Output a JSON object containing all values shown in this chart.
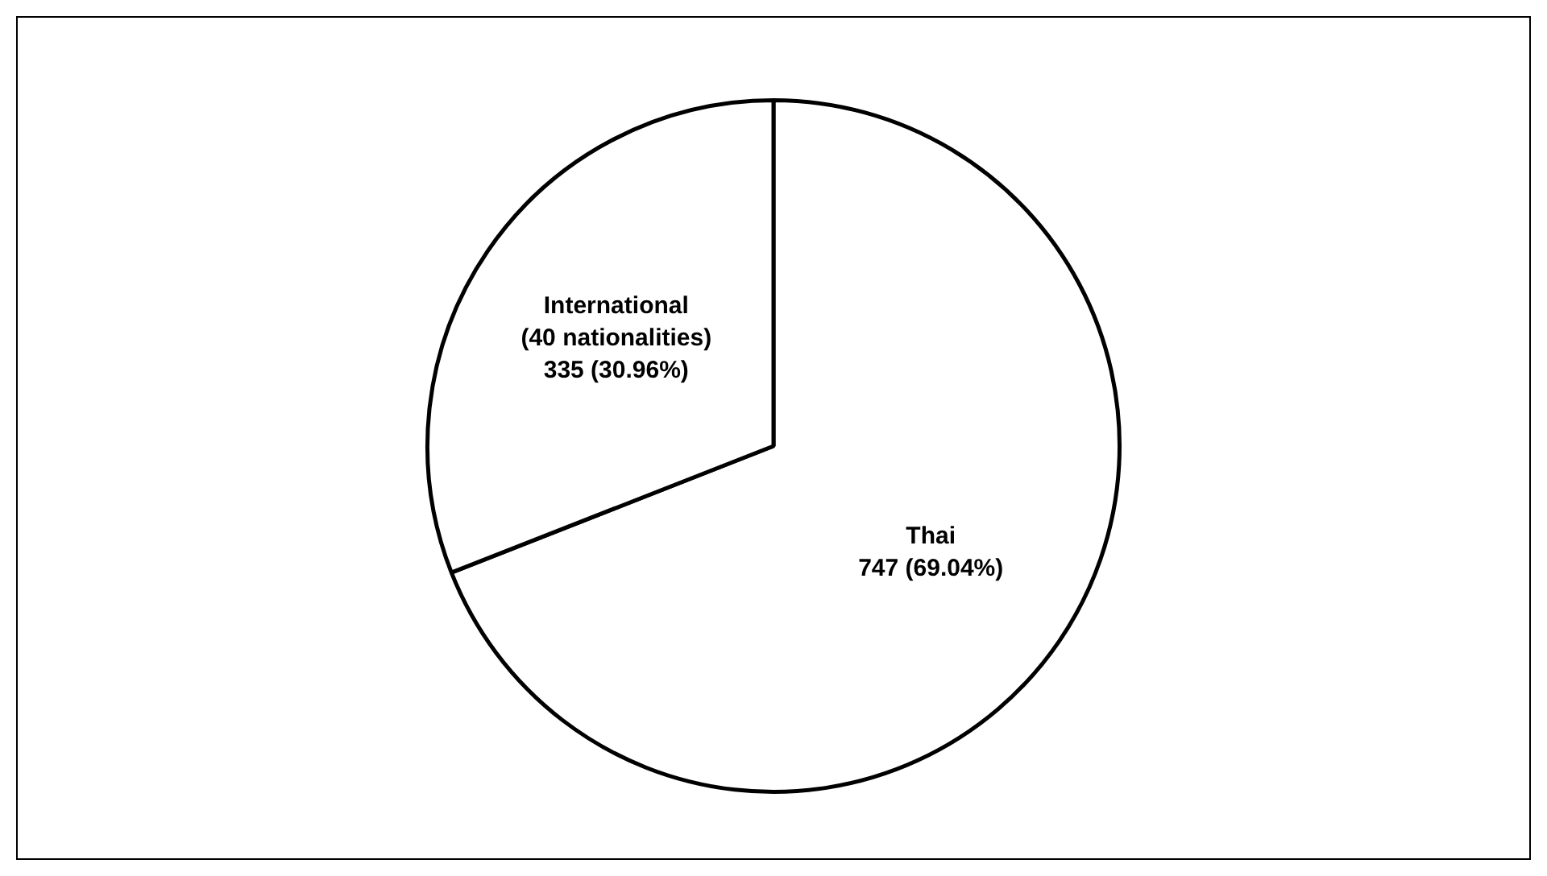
{
  "chart_data": {
    "type": "pie",
    "categories": [
      "Thai",
      "International\n(40 nationalities)"
    ],
    "values": [
      747,
      335
    ],
    "value_labels": [
      "747 (69.04%)",
      "335 (30.96%)"
    ],
    "colors": [
      "#ffffff",
      "#ffffff"
    ],
    "legend": false
  }
}
